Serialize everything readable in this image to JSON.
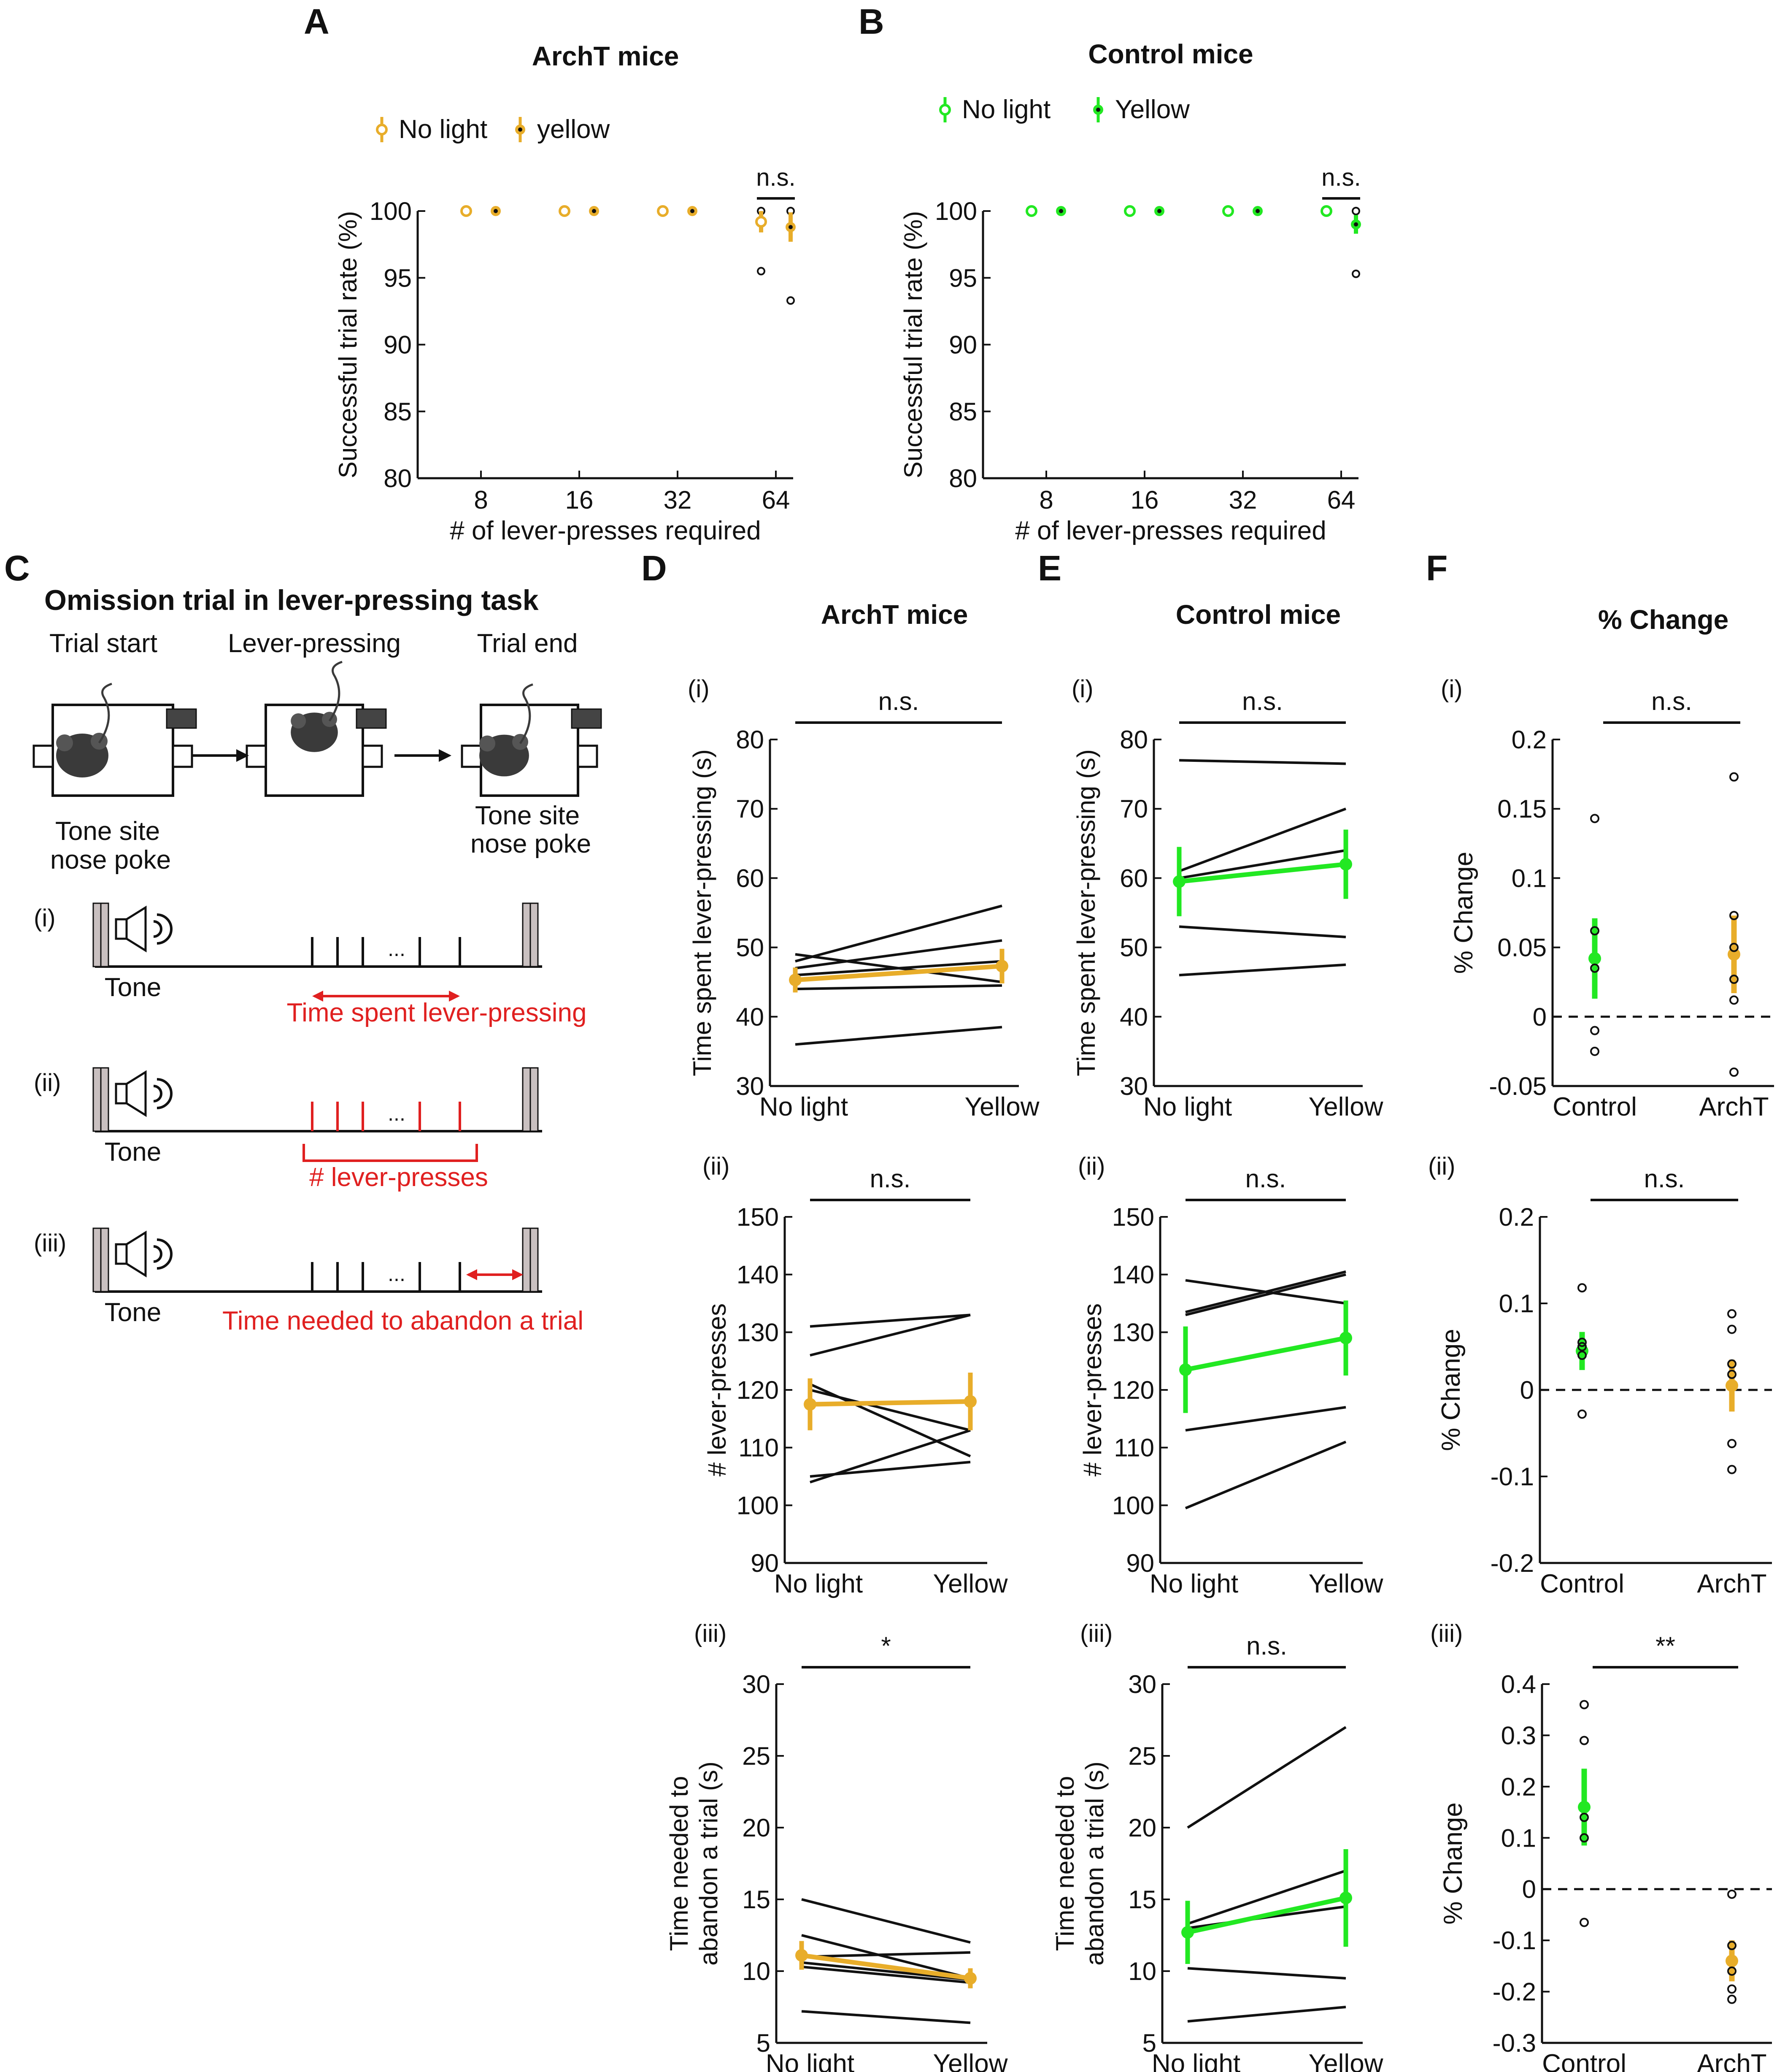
{
  "colors": {
    "archt": "#E8AD2A",
    "control": "#22E822",
    "ink": "#111111",
    "red": "#E02020",
    "mouse": "#3a3a3a"
  },
  "panel_letters": {
    "A": "A",
    "B": "B",
    "C": "C",
    "D": "D",
    "E": "E",
    "F": "F"
  },
  "panelC": {
    "title": "Omission trial in lever-pressing task",
    "trial_start": "Trial start",
    "lever_pressing": "Lever-pressing",
    "trial_end": "Trial end",
    "tone_site_line1": "Tone site",
    "tone_site_line2": "nose poke",
    "tone": "Tone",
    "ellipsis": "...",
    "rows": [
      {
        "roman": "(i)",
        "label": "Time spent lever-pressing"
      },
      {
        "roman": "(ii)",
        "label": "# lever-presses"
      },
      {
        "roman": "(iii)",
        "label": "Time needed to abandon a trial"
      }
    ]
  },
  "chart_data": [
    {
      "id": "A",
      "type": "scatter",
      "title": "ArchT mice",
      "legend": [
        "No light",
        "yellow"
      ],
      "legend_position": "top",
      "xlabel": "# of lever-presses required",
      "ylabel": "Successful trial rate (%)",
      "categories": [
        "8",
        "16",
        "32",
        "64"
      ],
      "ylim": [
        80,
        100
      ],
      "yticks": [
        80,
        85,
        90,
        95,
        100
      ],
      "significance": "n.s.",
      "series": [
        {
          "name": "No light",
          "means": [
            100,
            100,
            100,
            99.2
          ],
          "sem": [
            0,
            0,
            0,
            0.8
          ],
          "points": [
            [],
            [],
            [],
            [
              100,
              95.5
            ]
          ]
        },
        {
          "name": "yellow",
          "means": [
            100,
            100,
            100,
            98.8
          ],
          "sem": [
            0,
            0,
            0,
            1.1
          ],
          "points": [
            [],
            [],
            [],
            [
              100,
              93.3
            ]
          ]
        }
      ]
    },
    {
      "id": "B",
      "type": "scatter",
      "title": "Control mice",
      "legend": [
        "No light",
        "Yellow"
      ],
      "legend_position": "top",
      "xlabel": "# of lever-presses required",
      "ylabel": "Successful trial rate (%)",
      "categories": [
        "8",
        "16",
        "32",
        "64"
      ],
      "ylim": [
        80,
        100
      ],
      "yticks": [
        80,
        85,
        90,
        95,
        100
      ],
      "significance": "n.s.",
      "series": [
        {
          "name": "No light",
          "means": [
            100,
            100,
            100,
            100
          ],
          "sem": [
            0,
            0,
            0,
            0
          ],
          "points": [
            [],
            [],
            [],
            []
          ]
        },
        {
          "name": "Yellow",
          "means": [
            100,
            100,
            100,
            99
          ],
          "sem": [
            0,
            0,
            0,
            0.7
          ],
          "points": [
            [],
            [],
            [],
            [
              100,
              95.3
            ]
          ]
        }
      ]
    },
    {
      "id": "D-i",
      "type": "line",
      "title": "ArchT mice",
      "sub": "(i)",
      "categories": [
        "No light",
        "Yellow"
      ],
      "ylabel": [
        "Time spent lever-pressing (s)"
      ],
      "ylim": [
        30,
        80
      ],
      "yticks": [
        30,
        40,
        50,
        60,
        70,
        80
      ],
      "significance": "n.s.",
      "individual": [
        [
          49,
          45
        ],
        [
          48,
          56
        ],
        [
          47,
          51
        ],
        [
          46,
          48
        ],
        [
          44,
          44.5
        ],
        [
          36,
          38.5
        ]
      ],
      "mean": [
        45.3,
        47.3
      ],
      "sem": [
        1.8,
        2.5
      ]
    },
    {
      "id": "D-ii",
      "type": "line",
      "sub": "(ii)",
      "categories": [
        "No light",
        "Yellow"
      ],
      "ylabel": [
        "# lever-presses"
      ],
      "ylim": [
        90,
        150
      ],
      "yticks": [
        90,
        100,
        110,
        120,
        130,
        140,
        150
      ],
      "significance": "n.s.",
      "individual": [
        [
          131,
          133
        ],
        [
          126,
          133
        ],
        [
          121,
          108.5
        ],
        [
          120,
          113
        ],
        [
          105,
          107.5
        ],
        [
          104,
          113
        ]
      ],
      "mean": [
        117.5,
        118
      ],
      "sem": [
        4.5,
        5
      ]
    },
    {
      "id": "D-iii",
      "type": "line",
      "sub": "(iii)",
      "categories": [
        "No light",
        "Yellow"
      ],
      "ylabel": [
        "Time needed to",
        "abandon a trial (s)"
      ],
      "ylim": [
        5,
        30
      ],
      "yticks": [
        5,
        10,
        15,
        20,
        25,
        30
      ],
      "significance": "*",
      "individual": [
        [
          15,
          12
        ],
        [
          12.5,
          9.5
        ],
        [
          11,
          11.3
        ],
        [
          10.6,
          9.4
        ],
        [
          10.3,
          9.2
        ],
        [
          7.2,
          6.4
        ]
      ],
      "mean": [
        11.1,
        9.5
      ],
      "sem": [
        1.0,
        0.7
      ]
    },
    {
      "id": "E-i",
      "type": "line",
      "title": "Control mice",
      "sub": "(i)",
      "categories": [
        "No light",
        "Yellow"
      ],
      "ylabel": [
        "Time spent lever-pressing (s)"
      ],
      "ylim": [
        30,
        80
      ],
      "yticks": [
        30,
        40,
        50,
        60,
        70,
        80
      ],
      "significance": "n.s.",
      "individual": [
        [
          77,
          76.5
        ],
        [
          61,
          70
        ],
        [
          60,
          64
        ],
        [
          53,
          51.5
        ],
        [
          46,
          47.5
        ]
      ],
      "mean": [
        59.5,
        62
      ],
      "sem": [
        5,
        5
      ]
    },
    {
      "id": "E-ii",
      "type": "line",
      "sub": "(ii)",
      "categories": [
        "No light",
        "Yellow"
      ],
      "ylabel": [
        "# lever-presses"
      ],
      "ylim": [
        90,
        150
      ],
      "yticks": [
        90,
        100,
        110,
        120,
        130,
        140,
        150
      ],
      "significance": "n.s.",
      "individual": [
        [
          139,
          135
        ],
        [
          133.5,
          140.5
        ],
        [
          133,
          140
        ],
        [
          113,
          117
        ],
        [
          99.5,
          111
        ]
      ],
      "mean": [
        123.5,
        129
      ],
      "sem": [
        7.5,
        6.5
      ]
    },
    {
      "id": "E-iii",
      "type": "line",
      "sub": "(iii)",
      "categories": [
        "No light",
        "Yellow"
      ],
      "ylabel": [
        "Time needed to",
        "abandon a trial (s)"
      ],
      "ylim": [
        5,
        30
      ],
      "yticks": [
        5,
        10,
        15,
        20,
        25,
        30
      ],
      "significance": "n.s.",
      "individual": [
        [
          20,
          27
        ],
        [
          13.3,
          17
        ],
        [
          13,
          14.5
        ],
        [
          10.2,
          9.5
        ],
        [
          6.5,
          7.5
        ]
      ],
      "mean": [
        12.7,
        15.1
      ],
      "sem": [
        2.2,
        3.4
      ]
    },
    {
      "id": "F-i",
      "type": "scatter",
      "title": "% Change",
      "sub": "(i)",
      "categories": [
        "Control",
        "ArchT"
      ],
      "ylabel": [
        "% Change"
      ],
      "ylim": [
        -0.05,
        0.2
      ],
      "yticks": [
        -0.05,
        0,
        0.05,
        0.1,
        0.15,
        0.2
      ],
      "significance": "n.s.",
      "groups": [
        {
          "name": "Control",
          "mean": 0.042,
          "sem": 0.029,
          "points": [
            0.143,
            0.062,
            0.035,
            -0.01,
            -0.025
          ]
        },
        {
          "name": "ArchT",
          "mean": 0.045,
          "sem": 0.028,
          "points": [
            0.173,
            0.073,
            0.05,
            0.027,
            0.012,
            -0.04
          ]
        }
      ]
    },
    {
      "id": "F-ii",
      "type": "scatter",
      "sub": "(ii)",
      "categories": [
        "Control",
        "ArchT"
      ],
      "ylabel": [
        "% Change"
      ],
      "ylim": [
        -0.2,
        0.2
      ],
      "yticks": [
        -0.2,
        -0.1,
        0,
        0.1,
        0.2
      ],
      "significance": "n.s.",
      "groups": [
        {
          "name": "Control",
          "mean": 0.045,
          "sem": 0.022,
          "points": [
            0.118,
            0.055,
            0.05,
            0.04,
            -0.028
          ]
        },
        {
          "name": "ArchT",
          "mean": 0.005,
          "sem": 0.03,
          "points": [
            0.088,
            0.07,
            0.03,
            0.018,
            -0.062,
            -0.092
          ]
        }
      ]
    },
    {
      "id": "F-iii",
      "type": "scatter",
      "sub": "(iii)",
      "categories": [
        "Control",
        "ArchT"
      ],
      "ylabel": [
        "% Change"
      ],
      "ylim": [
        -0.3,
        0.4
      ],
      "yticks": [
        -0.3,
        -0.2,
        -0.1,
        0,
        0.1,
        0.2,
        0.3,
        0.4
      ],
      "significance": "**",
      "groups": [
        {
          "name": "Control",
          "mean": 0.16,
          "sem": 0.075,
          "points": [
            0.36,
            0.29,
            0.14,
            0.1,
            -0.065
          ]
        },
        {
          "name": "ArchT",
          "mean": -0.14,
          "sem": 0.04,
          "points": [
            -0.01,
            -0.11,
            -0.16,
            -0.195,
            -0.215
          ]
        }
      ]
    }
  ]
}
